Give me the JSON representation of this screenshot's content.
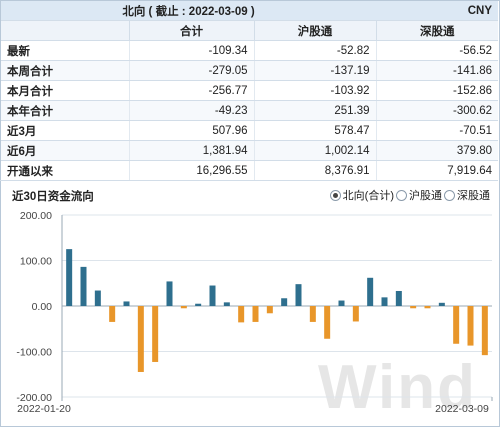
{
  "header": {
    "title": "北向 ( 截止 : 2022-03-09 )",
    "currency": "CNY"
  },
  "table": {
    "columns": [
      "合计",
      "沪股通",
      "深股通"
    ],
    "rows": [
      {
        "label": "最新",
        "values": [
          "-109.34",
          "-52.82",
          "-56.52"
        ]
      },
      {
        "label": "本周合计",
        "values": [
          "-279.05",
          "-137.19",
          "-141.86"
        ]
      },
      {
        "label": "本月合计",
        "values": [
          "-256.77",
          "-103.92",
          "-152.86"
        ]
      },
      {
        "label": "本年合计",
        "values": [
          "-49.23",
          "251.39",
          "-300.62"
        ]
      },
      {
        "label": "近3月",
        "values": [
          "507.96",
          "578.47",
          "-70.51"
        ]
      },
      {
        "label": "近6月",
        "values": [
          "1,381.94",
          "1,002.14",
          "379.80"
        ]
      },
      {
        "label": "开通以来",
        "values": [
          "16,296.55",
          "8,376.91",
          "7,919.64"
        ]
      }
    ]
  },
  "chart": {
    "title": "近30日资金流向",
    "legend": {
      "options": [
        "北向(合计)",
        "沪股通",
        "深股通"
      ],
      "selected": 0
    }
  },
  "chart_data": {
    "type": "bar",
    "title": "近30日资金流向",
    "ylim": [
      -200,
      200
    ],
    "yticks": [
      "200.00",
      "100.00",
      "0.00",
      "-100.00",
      "-200.00"
    ],
    "x_start_label": "2022-01-20",
    "x_end_label": "2022-03-09",
    "positive_color": "#2e6f8e",
    "negative_color": "#e8962a",
    "values": [
      125,
      86,
      34,
      -35,
      10,
      -145,
      -123,
      54,
      -5,
      5,
      45,
      8,
      -36,
      -35,
      -16,
      17,
      48,
      -35,
      -72,
      12,
      -34,
      62,
      19,
      33,
      -5,
      -5,
      7,
      -83,
      -87,
      -108
    ]
  },
  "watermark": "Wind"
}
